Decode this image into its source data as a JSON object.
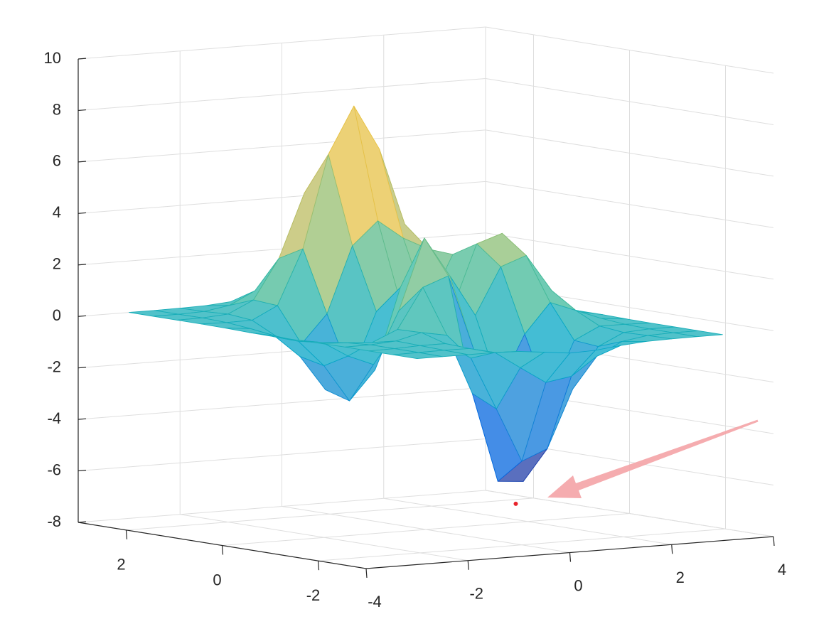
{
  "chart_data": {
    "type": "mesh",
    "x": [
      -3,
      -2.5,
      -2,
      -1.5,
      -1,
      -0.5,
      0,
      0.5,
      1,
      1.5,
      2,
      2.5,
      3
    ],
    "y": [
      -3,
      -2.5,
      -2,
      -1.5,
      -1,
      -0.5,
      0,
      0.5,
      1,
      1.5,
      2,
      2.5,
      3
    ],
    "z": [
      [
        0,
        0,
        0,
        0,
        -0.03,
        -0.14,
        -0.25,
        -0.22,
        -0.11,
        -0.03,
        -0.01,
        0,
        0
      ],
      [
        0,
        0.01,
        0.02,
        0.01,
        -0.22,
        -0.89,
        -1.54,
        -1.38,
        -0.68,
        -0.18,
        -0.03,
        0,
        0
      ],
      [
        0,
        0.01,
        0.05,
        0.05,
        -0.59,
        -2.64,
        -4.75,
        -4.34,
        -2.1,
        -0.53,
        -0.06,
        0,
        0
      ],
      [
        0,
        0.01,
        0.08,
        0.33,
        0.15,
        -2.19,
        -5.68,
        -5.76,
        -2.63,
        -0.44,
        0.04,
        0.03,
        0
      ],
      [
        -0.01,
        -0.06,
        -0.13,
        0.3,
        1.86,
        2.23,
        -0.72,
        -2.22,
        -0.27,
        0.88,
        0.5,
        0.11,
        0.01
      ],
      [
        -0.03,
        -0.2,
        -0.8,
        -1.21,
        0.8,
        3.55,
        2.0,
        0.39,
        2.2,
        2.56,
        1.12,
        0.23,
        0.03
      ],
      [
        -0.04,
        -0.3,
        -1.33,
        -2.77,
        -1.65,
        1.48,
        0.98,
        0.38,
        2.94,
        3.27,
        1.41,
        0.29,
        0.03
      ],
      [
        -0.03,
        -0.24,
        -1.12,
        -2.49,
        -2.0,
        0.39,
        0.46,
        0.38,
        2.38,
        2.56,
        1.09,
        0.23,
        0.03
      ],
      [
        -0.01,
        -0.11,
        -0.48,
        -0.86,
        0.23,
        2.8,
        3.69,
        2.94,
        2.43,
        1.58,
        0.58,
        0.11,
        0.01
      ],
      [
        0,
        -0.02,
        -0.01,
        0.48,
        2.61,
        6.2,
        8.0,
        6.25,
        3.25,
        1.19,
        0.29,
        0.05,
        0
      ],
      [
        0,
        0.01,
        0.08,
        0.55,
        2.09,
        4.55,
        5.85,
        4.56,
        2.21,
        0.68,
        0.13,
        0.02,
        0
      ],
      [
        0,
        0,
        0.03,
        0.19,
        0.68,
        1.45,
        1.86,
        1.45,
        0.69,
        0.2,
        0.04,
        0,
        0
      ],
      [
        0,
        0,
        0.01,
        0.03,
        0.11,
        0.23,
        0.3,
        0.23,
        0.11,
        0.03,
        0.01,
        0,
        0
      ]
    ],
    "xlim": [
      -4,
      4
    ],
    "ylim": [
      -3,
      3
    ],
    "zlim": [
      -8,
      10
    ],
    "xticks": [
      -4,
      -2,
      0,
      2,
      4
    ],
    "yticks": [
      -2,
      0,
      2
    ],
    "zticks": [
      -8,
      -6,
      -4,
      -2,
      0,
      2,
      4,
      6,
      8,
      10
    ],
    "grid": true,
    "colormap": "parula",
    "highlight_point": {
      "x": 0.23,
      "y": -1.63,
      "z": -6.55,
      "color": "#e8232b"
    }
  }
}
